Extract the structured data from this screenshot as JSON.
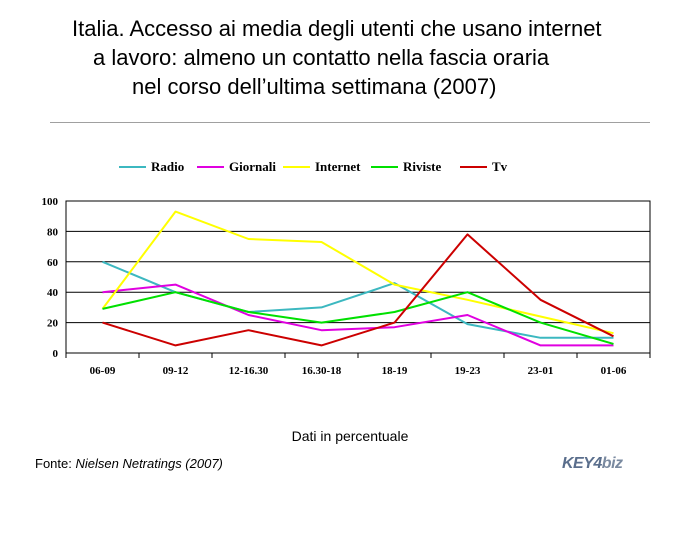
{
  "title_lines": [
    "Italia. Accesso ai media degli utenti che usano internet",
    "a lavoro: almeno un contatto nella fascia oraria",
    "nel corso dell’ultima settimana (2007)"
  ],
  "note": "Dati in percentuale",
  "source_label": "Fonte:",
  "source_text": "Nielsen Netratings (2007)",
  "logo": {
    "part1": "KEY4",
    "part2": "biz"
  },
  "chart_data": {
    "type": "line",
    "categories": [
      "06-09",
      "09-12",
      "12-16.30",
      "16.30-18",
      "18-19",
      "19-23",
      "23-01",
      "01-06"
    ],
    "ylim": [
      0,
      100
    ],
    "yticks": [
      0,
      20,
      40,
      60,
      80,
      100
    ],
    "grid": true,
    "legend_position": "top",
    "series": [
      {
        "name": "Radio",
        "color": "#3cb8c0",
        "values": [
          60,
          40,
          27,
          30,
          46,
          19,
          10,
          10
        ]
      },
      {
        "name": "Giornali",
        "color": "#e000e0",
        "values": [
          40,
          45,
          25,
          15,
          17,
          25,
          5,
          5
        ]
      },
      {
        "name": "Internet",
        "color": "#ffff00",
        "values": [
          29,
          93,
          75,
          73,
          45,
          35,
          24,
          13
        ]
      },
      {
        "name": "Riviste",
        "color": "#00e000",
        "values": [
          29,
          40,
          27,
          20,
          27,
          40,
          20,
          6
        ]
      },
      {
        "name": "Tv",
        "color": "#cc0000",
        "values": [
          20,
          5,
          15,
          5,
          20,
          78,
          35,
          11
        ]
      }
    ]
  }
}
